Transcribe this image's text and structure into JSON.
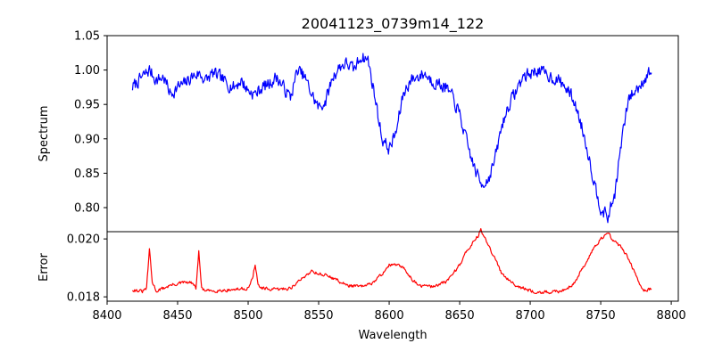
{
  "chart_data": [
    {
      "type": "line",
      "title": "20041123_0739m14_122",
      "xlabel": "",
      "ylabel": "Spectrum",
      "xlim": [
        8400,
        8805
      ],
      "ylim": [
        0.765,
        1.05
      ],
      "y_ticks": [
        0.8,
        0.85,
        0.9,
        0.95,
        1.0,
        1.05
      ],
      "y_tick_labels": [
        "0.80",
        "0.85",
        "0.90",
        "0.95",
        "1.00",
        "1.05"
      ],
      "grid": false,
      "series": [
        {
          "color": "#0000ff",
          "x": [
            8418,
            8425,
            8430,
            8435,
            8440,
            8445,
            8450,
            8455,
            8460,
            8465,
            8470,
            8475,
            8480,
            8485,
            8490,
            8495,
            8500,
            8505,
            8510,
            8515,
            8520,
            8525,
            8530,
            8535,
            8540,
            8545,
            8550,
            8555,
            8560,
            8565,
            8570,
            8575,
            8580,
            8585,
            8590,
            8595,
            8600,
            8605,
            8610,
            8615,
            8620,
            8625,
            8630,
            8635,
            8640,
            8645,
            8650,
            8655,
            8660,
            8665,
            8670,
            8675,
            8680,
            8685,
            8690,
            8695,
            8700,
            8705,
            8710,
            8715,
            8720,
            8725,
            8730,
            8735,
            8740,
            8745,
            8750,
            8755,
            8760,
            8765,
            8770,
            8775,
            8780,
            8786
          ],
          "y": [
            0.975,
            0.99,
            1.0,
            0.985,
            0.99,
            0.965,
            0.975,
            0.98,
            0.99,
            0.995,
            0.985,
            0.995,
            0.99,
            0.98,
            0.975,
            0.985,
            0.97,
            0.965,
            0.975,
            0.98,
            0.99,
            0.975,
            0.96,
            1.0,
            0.99,
            0.965,
            0.945,
            0.955,
            0.99,
            1.005,
            1.01,
            1.0,
            1.02,
            1.015,
            0.96,
            0.9,
            0.885,
            0.91,
            0.965,
            0.985,
            0.99,
            0.995,
            0.985,
            0.98,
            0.975,
            0.96,
            0.935,
            0.895,
            0.86,
            0.835,
            0.84,
            0.87,
            0.92,
            0.95,
            0.97,
            0.99,
            0.995,
            1.0,
            0.995,
            0.99,
            0.985,
            0.975,
            0.96,
            0.93,
            0.89,
            0.84,
            0.8,
            0.785,
            0.82,
            0.9,
            0.96,
            0.97,
            0.985,
            1.0
          ],
          "noise": 0.013
        }
      ]
    },
    {
      "type": "line",
      "title": "",
      "xlabel": "Wavelength",
      "ylabel": "Error",
      "xlim": [
        8400,
        8805
      ],
      "ylim": [
        0.01785,
        0.02025
      ],
      "x_ticks": [
        8400,
        8450,
        8500,
        8550,
        8600,
        8650,
        8700,
        8750,
        8800
      ],
      "y_ticks": [
        0.018,
        0.02
      ],
      "y_tick_labels": [
        "0.018",
        "0.020"
      ],
      "grid": false,
      "series": [
        {
          "color": "#ff0000",
          "x": [
            8418,
            8425,
            8428,
            8430,
            8432,
            8435,
            8440,
            8445,
            8450,
            8455,
            8460,
            8463,
            8465,
            8467,
            8470,
            8480,
            8490,
            8500,
            8503,
            8505,
            8507,
            8510,
            8520,
            8530,
            8540,
            8545,
            8550,
            8555,
            8560,
            8570,
            8580,
            8585,
            8590,
            8595,
            8600,
            8605,
            8610,
            8615,
            8620,
            8630,
            8640,
            8650,
            8655,
            8660,
            8663,
            8665,
            8667,
            8670,
            8675,
            8680,
            8690,
            8700,
            8710,
            8720,
            8730,
            8740,
            8745,
            8750,
            8755,
            8760,
            8765,
            8770,
            8775,
            8780,
            8786
          ],
          "y": [
            0.01825,
            0.01818,
            0.0183,
            0.01965,
            0.0185,
            0.0182,
            0.0183,
            0.0184,
            0.01845,
            0.0185,
            0.01848,
            0.0183,
            0.01955,
            0.0183,
            0.0182,
            0.01822,
            0.01825,
            0.0183,
            0.0186,
            0.01915,
            0.0184,
            0.01828,
            0.01825,
            0.0183,
            0.0187,
            0.0189,
            0.0188,
            0.01875,
            0.01865,
            0.0184,
            0.01835,
            0.0184,
            0.01855,
            0.0188,
            0.0191,
            0.0191,
            0.019,
            0.0187,
            0.0184,
            0.01835,
            0.0185,
            0.0191,
            0.0196,
            0.0199,
            0.0201,
            0.02035,
            0.0201,
            0.0198,
            0.0193,
            0.0188,
            0.0184,
            0.0182,
            0.01815,
            0.01818,
            0.0184,
            0.0192,
            0.0197,
            0.02,
            0.0202,
            0.0199,
            0.0197,
            0.0193,
            0.0187,
            0.0182,
            0.0183
          ],
          "noise": 8e-05
        }
      ]
    }
  ]
}
